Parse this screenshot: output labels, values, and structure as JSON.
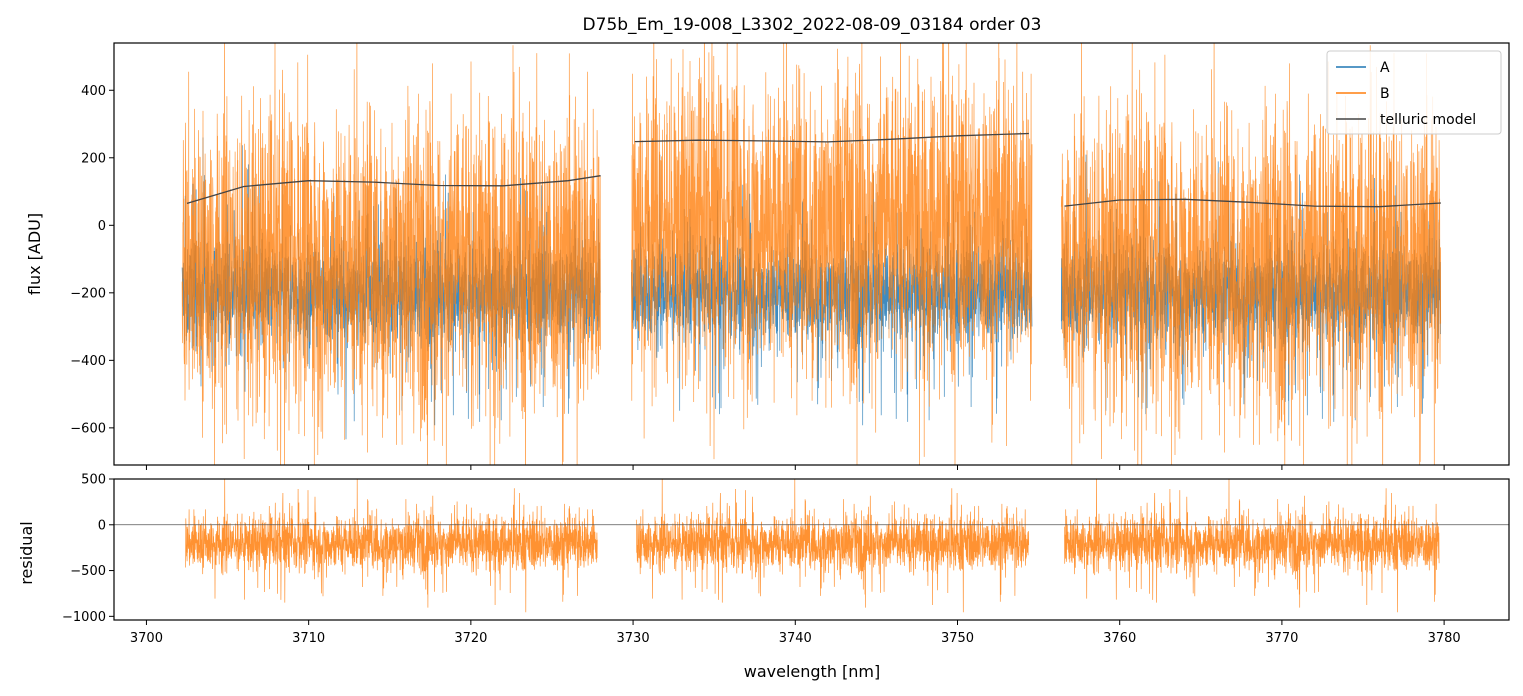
{
  "title": "D75b_Em_19-008_L3302_2022-08-09_03184  order 03",
  "chart_data": [
    {
      "type": "line",
      "panel": "top",
      "ylabel": "flux [ADU]",
      "xlim": [
        3698,
        3784
      ],
      "ylim": [
        -710,
        540
      ],
      "yticks": [
        400,
        200,
        0,
        -200,
        -400,
        -600
      ],
      "ytick_labels": [
        "400",
        "200",
        "0",
        "−200",
        "−400",
        "−600"
      ],
      "xticks": [
        3700,
        3710,
        3720,
        3730,
        3740,
        3750,
        3760,
        3770,
        3780
      ],
      "segments": [
        [
          3702.2,
          3728.0
        ],
        [
          3729.9,
          3754.6
        ],
        [
          3756.4,
          3779.8
        ]
      ],
      "legend": {
        "position": "top-right",
        "entries": [
          "A",
          "B",
          "telluric model"
        ]
      },
      "series": [
        {
          "name": "A",
          "color": "#1f77b4",
          "description": "noisy spectrum, mean ~ -200, spread ~ +/-150 with dips to -650"
        },
        {
          "name": "B",
          "color": "#ff7f0e",
          "description": "noisy spectrum, mean ~ -100, spread ~ +/-550"
        },
        {
          "name": "telluric model",
          "color": "#444444",
          "segments": [
            {
              "x": [
                3702.5,
                3706,
                3710,
                3714,
                3718,
                3722,
                3726,
                3728.0
              ],
              "y": [
                65,
                115,
                132,
                128,
                118,
                117,
                132,
                147
              ]
            },
            {
              "x": [
                3730.1,
                3734,
                3738,
                3742,
                3746,
                3750,
                3754.4
              ],
              "y": [
                248,
                252,
                250,
                247,
                255,
                265,
                272
              ]
            },
            {
              "x": [
                3756.6,
                3760,
                3764,
                3768,
                3772,
                3776,
                3779.8
              ],
              "y": [
                57,
                75,
                77,
                68,
                57,
                55,
                66
              ]
            }
          ]
        }
      ]
    },
    {
      "type": "line",
      "panel": "bottom",
      "xlabel": "wavelength [nm]",
      "ylabel": "residual",
      "xlim": [
        3698,
        3784
      ],
      "ylim": [
        -1040,
        500
      ],
      "yticks": [
        500,
        0,
        -500,
        -1000
      ],
      "ytick_labels": [
        "500",
        "0",
        "−500",
        "−1000"
      ],
      "xticks": [
        3700,
        3710,
        3720,
        3730,
        3740,
        3750,
        3760,
        3770,
        3780
      ],
      "xtick_labels": [
        "3700",
        "3710",
        "3720",
        "3730",
        "3740",
        "3750",
        "3760",
        "3770",
        "3780"
      ],
      "segments": [
        [
          3702.4,
          3727.8
        ],
        [
          3730.2,
          3754.4
        ],
        [
          3756.6,
          3779.7
        ]
      ],
      "reference_line": 0,
      "series": [
        {
          "name": "B",
          "color": "#ff7f0e",
          "description": "residual, mean ~ -200, spread ~ +/-350"
        }
      ]
    }
  ]
}
